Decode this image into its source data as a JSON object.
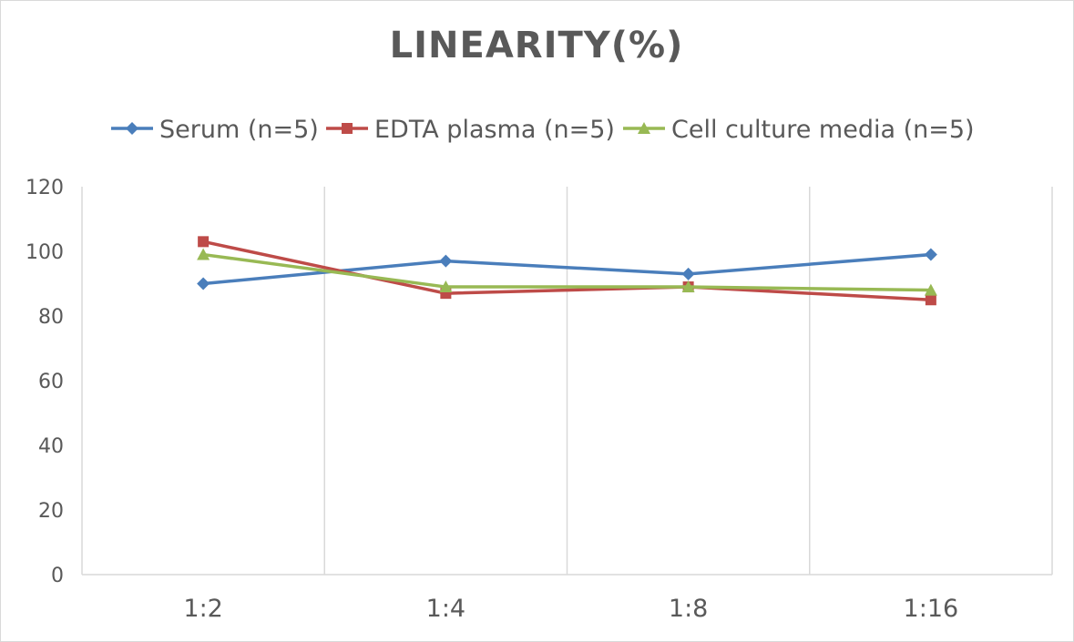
{
  "chart_data": {
    "type": "line",
    "title": "LINEARITY(%)",
    "categories": [
      "1:2",
      "1:4",
      "1:8",
      "1:16"
    ],
    "ylim": [
      0,
      120
    ],
    "yticks": [
      0,
      20,
      40,
      60,
      80,
      100,
      120
    ],
    "grid": "vertical",
    "legend_position": "top",
    "series": [
      {
        "name": "Serum (n=5)",
        "values": [
          90,
          97,
          93,
          99
        ],
        "color": "#4a7ebb",
        "marker": "diamond"
      },
      {
        "name": "EDTA plasma (n=5)",
        "values": [
          103,
          87,
          89,
          85
        ],
        "color": "#be4b48",
        "marker": "square"
      },
      {
        "name": "Cell culture media (n=5)",
        "values": [
          99,
          89,
          89,
          88
        ],
        "color": "#98b954",
        "marker": "triangle"
      }
    ]
  }
}
